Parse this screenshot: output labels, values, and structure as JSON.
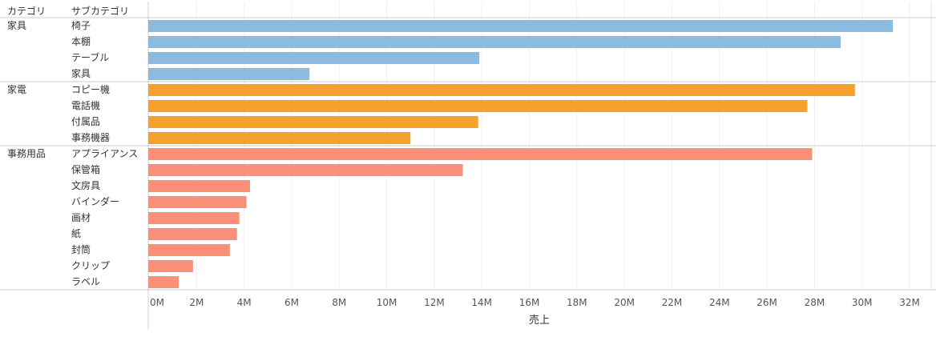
{
  "chart_data": {
    "type": "bar",
    "orientation": "horizontal",
    "header": {
      "category": "カテゴリ",
      "subcategory": "サブカテゴリ"
    },
    "xlabel": "売上",
    "xlim": [
      0,
      32000000
    ],
    "xticks": [
      "0M",
      "2M",
      "4M",
      "6M",
      "8M",
      "10M",
      "12M",
      "14M",
      "16M",
      "18M",
      "20M",
      "22M",
      "24M",
      "26M",
      "28M",
      "30M",
      "32M"
    ],
    "grid": true,
    "groups": [
      {
        "category": "家具",
        "color": "#8bbbde",
        "items": [
          {
            "label": "椅子",
            "value": 31300000
          },
          {
            "label": "本棚",
            "value": 29100000
          },
          {
            "label": "テーブル",
            "value": 13900000
          },
          {
            "label": "家具",
            "value": 6750000
          }
        ]
      },
      {
        "category": "家電",
        "color": "#f5a12e",
        "items": [
          {
            "label": "コピー機",
            "value": 29700000
          },
          {
            "label": "電話機",
            "value": 27700000
          },
          {
            "label": "付属品",
            "value": 13850000
          },
          {
            "label": "事務機器",
            "value": 11000000
          }
        ]
      },
      {
        "category": "事務用品",
        "color": "#fb9079",
        "items": [
          {
            "label": "アプライアンス",
            "value": 27900000
          },
          {
            "label": "保管箱",
            "value": 13200000
          },
          {
            "label": "文房具",
            "value": 4250000
          },
          {
            "label": "バインダー",
            "value": 4100000
          },
          {
            "label": "画材",
            "value": 3800000
          },
          {
            "label": "紙",
            "value": 3700000
          },
          {
            "label": "封筒",
            "value": 3400000
          },
          {
            "label": "クリップ",
            "value": 1850000
          },
          {
            "label": "ラベル",
            "value": 1250000
          }
        ]
      }
    ]
  }
}
